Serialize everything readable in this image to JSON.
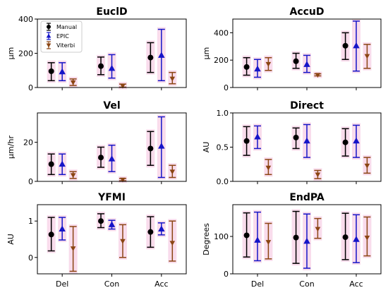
{
  "series_styles": [
    {
      "color": "#000000",
      "marker": "circle"
    },
    {
      "color": "#1515c8",
      "marker": "triangle-up"
    },
    {
      "color": "#8b4513",
      "marker": "triangle-down"
    }
  ],
  "highlight_color": "#f8d8ea",
  "chart_data": [
    {
      "type": "errorbar",
      "title": "EuclD",
      "ylabel": "µm",
      "categories": [
        "",
        "",
        ""
      ],
      "ylim": [
        0,
        400
      ],
      "yticks": [
        "0",
        "200",
        "400"
      ],
      "legend": "top-left",
      "series": [
        {
          "name": "Manual",
          "mean": [
            95,
            125,
            175
          ],
          "low": [
            40,
            75,
            88
          ],
          "high": [
            145,
            178,
            262
          ]
        },
        {
          "name": "EPIC",
          "mean": [
            92,
            112,
            188
          ],
          "low": [
            40,
            55,
            40
          ],
          "high": [
            145,
            192,
            340
          ]
        },
        {
          "name": "Viterbi",
          "mean": [
            30,
            10,
            52
          ],
          "low": [
            12,
            2,
            22
          ],
          "high": [
            50,
            20,
            88
          ]
        }
      ]
    },
    {
      "type": "errorbar",
      "title": "AccuD",
      "ylabel": "µm",
      "categories": [
        "",
        "",
        ""
      ],
      "ylim": [
        0,
        500
      ],
      "yticks": [
        "0",
        "200",
        "400"
      ],
      "series": [
        {
          "mean": [
            150,
            192,
            305
          ],
          "low": [
            90,
            140,
            205
          ],
          "high": [
            218,
            250,
            400
          ]
        },
        {
          "mean": [
            135,
            168,
            305
          ],
          "low": [
            75,
            110,
            120
          ],
          "high": [
            205,
            235,
            485
          ]
        },
        {
          "mean": [
            172,
            92,
            230
          ],
          "low": [
            125,
            85,
            140
          ],
          "high": [
            218,
            100,
            315
          ]
        }
      ]
    },
    {
      "type": "errorbar",
      "title": "Vel",
      "ylabel": "µm/hr",
      "categories": [
        "",
        "",
        ""
      ],
      "ylim": [
        0,
        35
      ],
      "yticks": [
        "0",
        "20"
      ],
      "series": [
        {
          "mean": [
            8.8,
            12.2,
            16.8
          ],
          "low": [
            3.5,
            7.2,
            8.2
          ],
          "high": [
            14.0,
            17.5,
            25.5
          ]
        },
        {
          "mean": [
            8.8,
            11.5,
            18.0
          ],
          "low": [
            3.5,
            5.0,
            2.0
          ],
          "high": [
            14.0,
            18.5,
            33.0
          ]
        },
        {
          "mean": [
            3.2,
            0.9,
            5.0
          ],
          "low": [
            1.5,
            0.3,
            2.0
          ],
          "high": [
            5.0,
            1.5,
            8.2
          ]
        }
      ]
    },
    {
      "type": "errorbar",
      "title": "Direct",
      "ylabel": "AU",
      "categories": [
        "",
        "",
        ""
      ],
      "ylim": [
        0,
        1.0
      ],
      "yticks": [
        "0.0",
        "0.5",
        "1.0"
      ],
      "series": [
        {
          "mean": [
            0.59,
            0.64,
            0.57
          ],
          "low": [
            0.38,
            0.48,
            0.37
          ],
          "high": [
            0.8,
            0.78,
            0.77
          ]
        },
        {
          "mean": [
            0.65,
            0.59,
            0.59
          ],
          "low": [
            0.48,
            0.35,
            0.35
          ],
          "high": [
            0.81,
            0.83,
            0.82
          ]
        },
        {
          "mean": [
            0.2,
            0.1,
            0.23
          ],
          "low": [
            0.1,
            0.04,
            0.12
          ],
          "high": [
            0.32,
            0.16,
            0.35
          ]
        }
      ]
    },
    {
      "type": "errorbar",
      "title": "YFMI",
      "ylabel": "AU",
      "categories": [
        "Del",
        "Con",
        "Acc"
      ],
      "ylim": [
        -0.45,
        1.45
      ],
      "yticks": [
        "0",
        "1"
      ],
      "series": [
        {
          "mean": [
            0.63,
            1.0,
            0.7
          ],
          "low": [
            0.18,
            0.82,
            0.28
          ],
          "high": [
            1.1,
            1.2,
            1.12
          ]
        },
        {
          "mean": [
            0.78,
            0.9,
            0.78
          ],
          "low": [
            0.48,
            0.78,
            0.62
          ],
          "high": [
            1.1,
            1.02,
            0.95
          ]
        },
        {
          "mean": [
            0.25,
            0.45,
            0.4
          ],
          "low": [
            -0.38,
            0.0,
            -0.1
          ],
          "high": [
            0.85,
            0.9,
            1.0
          ]
        }
      ]
    },
    {
      "type": "errorbar",
      "title": "EndPA",
      "ylabel": "Degrees",
      "categories": [
        "Del",
        "Con",
        "Acc"
      ],
      "ylim": [
        0,
        185
      ],
      "yticks": [
        "0",
        "100"
      ],
      "series": [
        {
          "mean": [
            103,
            97,
            98
          ],
          "low": [
            45,
            28,
            38
          ],
          "high": [
            163,
            167,
            162
          ]
        },
        {
          "mean": [
            90,
            87,
            92
          ],
          "low": [
            35,
            15,
            30
          ],
          "high": [
            165,
            160,
            158
          ]
        },
        {
          "mean": [
            85,
            120,
            97
          ],
          "low": [
            40,
            95,
            48
          ],
          "high": [
            135,
            148,
            152
          ]
        }
      ]
    }
  ]
}
